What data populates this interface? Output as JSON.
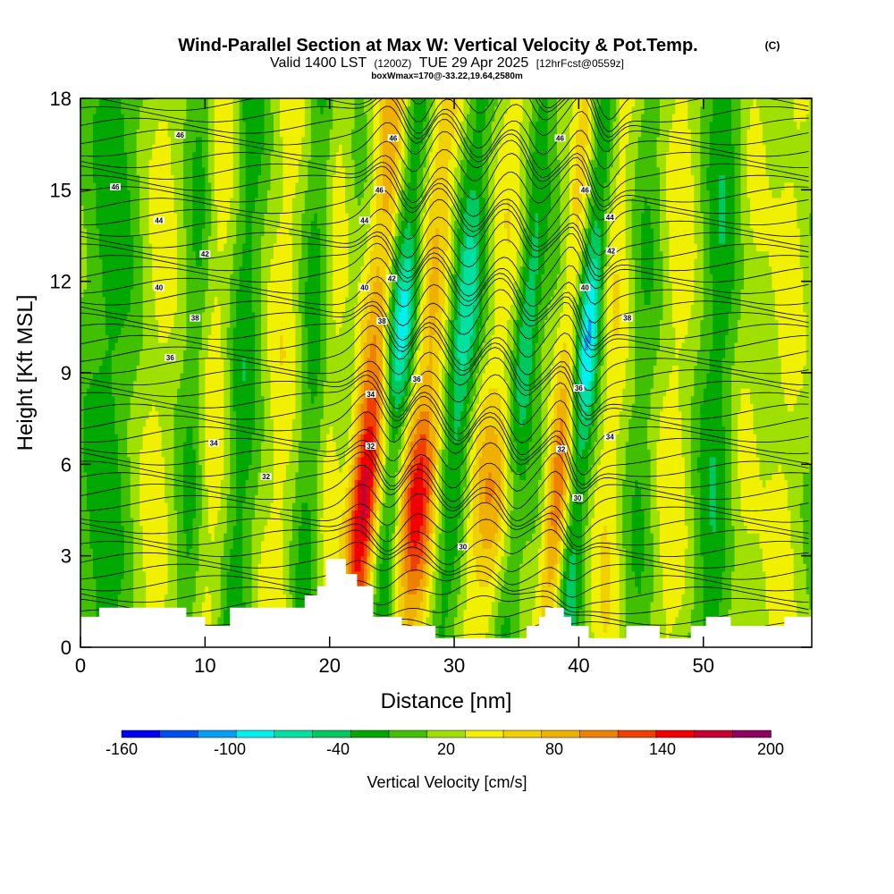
{
  "chart_data": {
    "type": "heatmap",
    "title": {
      "main": "Wind-Parallel Section at Max W: Vertical Velocity & Pot.Temp.",
      "copyright": "(C)",
      "valid_prefix": "Valid 1400 LST",
      "valid_utc": "(1200Z)",
      "valid_date": "TUE 29 Apr 2025",
      "forecast": "[12hrFcst@0559z]",
      "box_info": "boxWmax=170@-33.22,19.64,2580m"
    },
    "xlabel": "Distance [nm]",
    "ylabel": "Height [Kft MSL]",
    "xlim": [
      0,
      58.7
    ],
    "ylim": [
      0,
      18
    ],
    "x_ticks": [
      0,
      10,
      20,
      30,
      40,
      50
    ],
    "y_ticks": [
      0,
      3,
      6,
      9,
      12,
      15,
      18
    ],
    "fill_variable": "Vertical Velocity [cm/s]",
    "fill_range": [
      -160,
      200
    ],
    "colorbar_ticks": [
      -160,
      -100,
      -40,
      20,
      80,
      140,
      200
    ],
    "colorbar_colors": [
      "#0000f0",
      "#0050f0",
      "#00a0f8",
      "#00f0f0",
      "#00e0a0",
      "#00c860",
      "#00a800",
      "#40c000",
      "#a0e000",
      "#f0f000",
      "#f0d000",
      "#f0b000",
      "#f08000",
      "#f04000",
      "#f00000",
      "#c80030",
      "#900060"
    ],
    "base_color": "#a0e000",
    "wave_features": [
      {
        "x": 2,
        "width": 1.8,
        "value": -30
      },
      {
        "x": 6,
        "width": 1.5,
        "value": 30
      },
      {
        "x": 9,
        "width": 1.0,
        "value": -30
      },
      {
        "x": 10.5,
        "width": 1.5,
        "value": 35
      },
      {
        "x": 12.8,
        "width": 1.2,
        "value": -35
      },
      {
        "x": 16,
        "width": 1.6,
        "value": 35
      },
      {
        "x": 18.3,
        "width": 1.2,
        "value": -30
      },
      {
        "x": 20,
        "width": 1.0,
        "value": 30
      },
      {
        "x": 23.0,
        "width": 1.3,
        "value": 170
      },
      {
        "x": 25.0,
        "width": 1.2,
        "value": -100
      },
      {
        "x": 27.3,
        "width": 1.6,
        "value": 140
      },
      {
        "x": 30.0,
        "width": 1.3,
        "value": -90
      },
      {
        "x": 33.0,
        "width": 2.0,
        "value": 80
      },
      {
        "x": 35.0,
        "width": 1.0,
        "value": -80
      },
      {
        "x": 38.5,
        "width": 1.0,
        "value": 110
      },
      {
        "x": 40.0,
        "width": 1.0,
        "value": -110
      },
      {
        "x": 42.5,
        "width": 1.5,
        "value": 40
      },
      {
        "x": 45.0,
        "width": 1.5,
        "value": -25
      },
      {
        "x": 47.5,
        "width": 2.0,
        "value": 35
      },
      {
        "x": 51.0,
        "width": 1.8,
        "value": -40
      },
      {
        "x": 53.0,
        "width": 1.5,
        "value": 30
      },
      {
        "x": 56.5,
        "width": 1.5,
        "value": 30
      }
    ],
    "contour_labels": [
      {
        "label": "46",
        "x": 8,
        "y": 16.8
      },
      {
        "label": "46",
        "x": 25.1,
        "y": 16.7
      },
      {
        "label": "46",
        "x": 38.5,
        "y": 16.7
      },
      {
        "label": "46",
        "x": 2.8,
        "y": 15.1
      },
      {
        "label": "46",
        "x": 24.0,
        "y": 15.0
      },
      {
        "label": "46",
        "x": 40.5,
        "y": 15.0
      },
      {
        "label": "44",
        "x": 6.3,
        "y": 14.0
      },
      {
        "label": "44",
        "x": 22.8,
        "y": 14.0
      },
      {
        "label": "44",
        "x": 42.5,
        "y": 14.1
      },
      {
        "label": "42",
        "x": 10.0,
        "y": 12.9
      },
      {
        "label": "42",
        "x": 42.6,
        "y": 13.0
      },
      {
        "label": "42",
        "x": 25.0,
        "y": 12.1
      },
      {
        "label": "40",
        "x": 6.3,
        "y": 11.8
      },
      {
        "label": "40",
        "x": 22.8,
        "y": 11.8
      },
      {
        "label": "40",
        "x": 40.5,
        "y": 11.8
      },
      {
        "label": "38",
        "x": 9.2,
        "y": 10.8
      },
      {
        "label": "38",
        "x": 24.2,
        "y": 10.7
      },
      {
        "label": "38",
        "x": 43.9,
        "y": 10.8
      },
      {
        "label": "36",
        "x": 7.2,
        "y": 9.5
      },
      {
        "label": "36",
        "x": 27.0,
        "y": 8.8
      },
      {
        "label": "36",
        "x": 40.0,
        "y": 8.5
      },
      {
        "label": "34",
        "x": 23.3,
        "y": 8.3
      },
      {
        "label": "34",
        "x": 10.7,
        "y": 6.7
      },
      {
        "label": "34",
        "x": 42.5,
        "y": 6.9
      },
      {
        "label": "32",
        "x": 23.3,
        "y": 6.6
      },
      {
        "label": "32",
        "x": 38.6,
        "y": 6.5
      },
      {
        "label": "32",
        "x": 14.9,
        "y": 5.6
      },
      {
        "label": "30",
        "x": 39.9,
        "y": 4.9
      },
      {
        "label": "30",
        "x": 30.7,
        "y": 3.3
      }
    ],
    "terrain": [
      [
        0,
        1
      ],
      [
        1.5,
        1
      ],
      [
        1.5,
        1.3
      ],
      [
        8.5,
        1.3
      ],
      [
        8.5,
        1
      ],
      [
        10,
        1
      ],
      [
        10,
        0.7
      ],
      [
        12,
        0.7
      ],
      [
        12,
        1.3
      ],
      [
        18,
        1.3
      ],
      [
        18,
        1.7
      ],
      [
        19,
        1.7
      ],
      [
        19,
        2
      ],
      [
        19.7,
        2
      ],
      [
        19.7,
        2.9
      ],
      [
        21.3,
        2.9
      ],
      [
        21.3,
        2.4
      ],
      [
        22.2,
        2.4
      ],
      [
        22.2,
        2
      ],
      [
        23.5,
        2
      ],
      [
        23.5,
        1
      ],
      [
        25.8,
        1
      ],
      [
        25.8,
        0.7
      ],
      [
        28.5,
        0.7
      ],
      [
        28.5,
        0.3
      ],
      [
        35.8,
        0.3
      ],
      [
        35.8,
        0.7
      ],
      [
        36.8,
        0.7
      ],
      [
        36.8,
        1
      ],
      [
        37.3,
        1
      ],
      [
        37.3,
        1.3
      ],
      [
        38.8,
        1.3
      ],
      [
        38.8,
        1
      ],
      [
        39.4,
        1
      ],
      [
        39.4,
        0.7
      ],
      [
        40.8,
        0.7
      ],
      [
        40.8,
        0.3
      ],
      [
        43.8,
        0.3
      ],
      [
        43.8,
        0.7
      ],
      [
        46.5,
        0.7
      ],
      [
        46.5,
        0.3
      ],
      [
        49,
        0.3
      ],
      [
        49,
        0.7
      ],
      [
        50.2,
        0.7
      ],
      [
        50.2,
        1
      ],
      [
        52.2,
        1
      ],
      [
        52.2,
        0.7
      ],
      [
        56.5,
        0.7
      ],
      [
        56.5,
        1
      ],
      [
        58.7,
        1
      ]
    ]
  }
}
